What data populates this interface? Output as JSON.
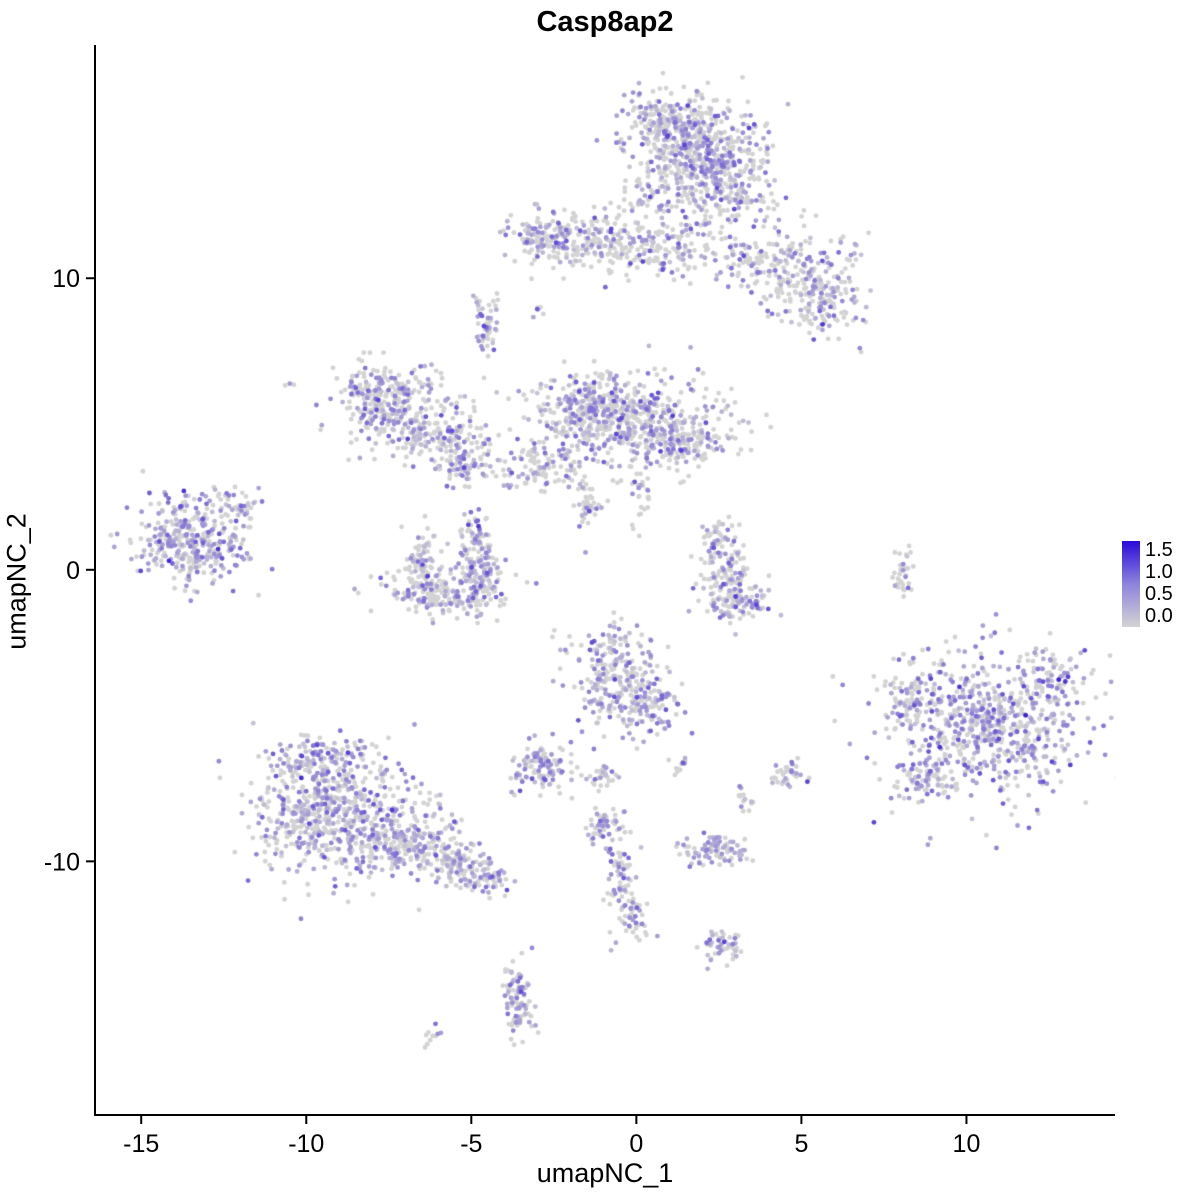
{
  "chart_data": {
    "type": "scatter",
    "title": "Casp8ap2",
    "xlabel": "umapNC_1",
    "ylabel": "umapNC_2",
    "x_ticks": [
      "-15",
      "-10",
      "-5",
      "0",
      "5",
      "10"
    ],
    "x_tick_values": [
      -15,
      -10,
      -5,
      0,
      5,
      10
    ],
    "y_ticks": [
      "-10",
      "0",
      "10"
    ],
    "y_tick_values": [
      -10,
      0,
      10
    ],
    "xlim": [
      -16.4,
      14.5
    ],
    "ylim": [
      -18.7,
      18.0
    ],
    "grid": false,
    "legend": {
      "position": "right",
      "ticks": [
        "1.5",
        "1.0",
        "0.5",
        "0.0"
      ],
      "vmin": 0.0,
      "vmax": 1.75,
      "low_color": "#D3D3D3",
      "high_color": "#2A0BD9"
    },
    "point_radius_px": 2.4,
    "cluster_fields": [
      "x",
      "y",
      "sd_x",
      "sd_y",
      "n_cells",
      "expressing_fraction",
      "intensity"
    ],
    "clusters": [
      [
        1.8,
        14.4,
        1.0,
        0.9,
        480,
        0.45
      ],
      [
        1.1,
        15.4,
        0.7,
        0.45,
        140,
        0.4
      ],
      [
        2.4,
        13.6,
        0.5,
        0.5,
        80,
        0.4
      ],
      [
        3.2,
        12.7,
        0.55,
        0.6,
        90,
        0.35
      ],
      [
        0.3,
        12.8,
        0.4,
        0.5,
        35,
        0.35
      ],
      [
        -1.3,
        11.3,
        1.3,
        0.5,
        240,
        0.35
      ],
      [
        -2.9,
        11.6,
        0.4,
        0.4,
        60,
        0.4
      ],
      [
        0.6,
        11.0,
        0.8,
        0.5,
        90,
        0.3
      ],
      [
        1.8,
        11.6,
        0.5,
        0.8,
        60,
        0.3
      ],
      [
        3.4,
        10.6,
        0.4,
        0.5,
        50,
        0.3
      ],
      [
        4.6,
        10.2,
        0.65,
        0.75,
        150,
        0.35
      ],
      [
        5.8,
        9.3,
        0.5,
        0.55,
        120,
        0.4
      ],
      [
        6.1,
        10.6,
        0.3,
        0.4,
        25,
        0.35
      ],
      [
        -2.9,
        8.9,
        0.15,
        0.2,
        6,
        0.5
      ],
      [
        -4.6,
        8.3,
        0.18,
        0.65,
        55,
        0.5
      ],
      [
        6.8,
        7.5,
        0.08,
        0.08,
        2,
        0.6
      ],
      [
        -10.5,
        6.4,
        0.1,
        0.1,
        3,
        0.3
      ],
      [
        -8.0,
        6.3,
        0.4,
        0.3,
        40,
        0.4
      ],
      [
        -7.4,
        5.7,
        0.85,
        0.65,
        270,
        0.45
      ],
      [
        -6.2,
        4.6,
        0.8,
        0.5,
        130,
        0.4
      ],
      [
        -5.2,
        3.7,
        0.45,
        0.45,
        90,
        0.45
      ],
      [
        -1.3,
        5.7,
        0.6,
        0.5,
        150,
        0.5
      ],
      [
        -0.3,
        5.0,
        1.5,
        0.85,
        520,
        0.4
      ],
      [
        1.4,
        4.4,
        0.7,
        0.5,
        120,
        0.4
      ],
      [
        -3.0,
        3.4,
        0.6,
        0.4,
        90,
        0.4
      ],
      [
        -1.5,
        2.2,
        0.18,
        0.55,
        40,
        0.35
      ],
      [
        0.2,
        2.3,
        0.2,
        0.5,
        25,
        0.3
      ],
      [
        -13.4,
        1.0,
        0.85,
        0.75,
        360,
        0.55
      ],
      [
        -12.0,
        2.2,
        0.3,
        0.3,
        30,
        0.5
      ],
      [
        -6.5,
        0.1,
        0.3,
        0.5,
        80,
        0.45
      ],
      [
        -4.7,
        0.0,
        0.3,
        0.55,
        90,
        0.5
      ],
      [
        -4.9,
        1.2,
        0.35,
        0.35,
        45,
        0.4
      ],
      [
        -5.7,
        -0.8,
        1.0,
        0.4,
        210,
        0.45
      ],
      [
        2.4,
        1.2,
        0.2,
        0.25,
        30,
        0.4
      ],
      [
        2.7,
        -0.2,
        0.45,
        0.75,
        130,
        0.4
      ],
      [
        3.3,
        -1.1,
        0.45,
        0.3,
        70,
        0.45
      ],
      [
        8.1,
        -0.1,
        0.15,
        0.5,
        35,
        0.15
      ],
      [
        12.6,
        -3.6,
        0.5,
        0.5,
        70,
        0.4
      ],
      [
        10.5,
        -5.3,
        1.45,
        1.25,
        680,
        0.5,
        1.1
      ],
      [
        8.3,
        -4.3,
        0.4,
        0.5,
        60,
        0.4
      ],
      [
        8.7,
        -7.2,
        0.5,
        0.4,
        70,
        0.45
      ],
      [
        -0.6,
        -3.6,
        0.7,
        0.9,
        250,
        0.5
      ],
      [
        0.5,
        -4.9,
        0.5,
        0.5,
        90,
        0.45
      ],
      [
        -2.8,
        -6.8,
        0.5,
        0.4,
        110,
        0.5
      ],
      [
        -1.0,
        -7.1,
        0.25,
        0.2,
        30,
        0.4
      ],
      [
        1.3,
        -6.7,
        0.15,
        0.2,
        12,
        0.3
      ],
      [
        4.6,
        -7.1,
        0.3,
        0.3,
        35,
        0.4
      ],
      [
        3.3,
        -7.9,
        0.2,
        0.2,
        15,
        0.4
      ],
      [
        -9.6,
        -6.5,
        0.7,
        0.4,
        120,
        0.5
      ],
      [
        -9.2,
        -8.3,
        1.3,
        1.1,
        620,
        0.5
      ],
      [
        -6.9,
        -9.4,
        0.9,
        0.5,
        200,
        0.45
      ],
      [
        -5.2,
        -10.2,
        0.5,
        0.35,
        100,
        0.45
      ],
      [
        -4.4,
        -10.7,
        0.3,
        0.25,
        40,
        0.4
      ],
      [
        2.3,
        -9.6,
        0.55,
        0.3,
        90,
        0.6,
        0.7
      ],
      [
        -0.9,
        -8.8,
        0.3,
        0.3,
        50,
        0.5
      ],
      [
        -0.5,
        -10.4,
        0.22,
        0.6,
        60,
        0.5
      ],
      [
        -0.2,
        -11.9,
        0.25,
        0.4,
        50,
        0.45
      ],
      [
        2.6,
        -12.9,
        0.3,
        0.3,
        50,
        0.45
      ],
      [
        -3.6,
        -14.2,
        0.2,
        0.45,
        45,
        0.4
      ],
      [
        -3.5,
        -15.3,
        0.25,
        0.5,
        55,
        0.5
      ],
      [
        -6.2,
        -15.9,
        0.15,
        0.15,
        10,
        0.3
      ]
    ]
  }
}
